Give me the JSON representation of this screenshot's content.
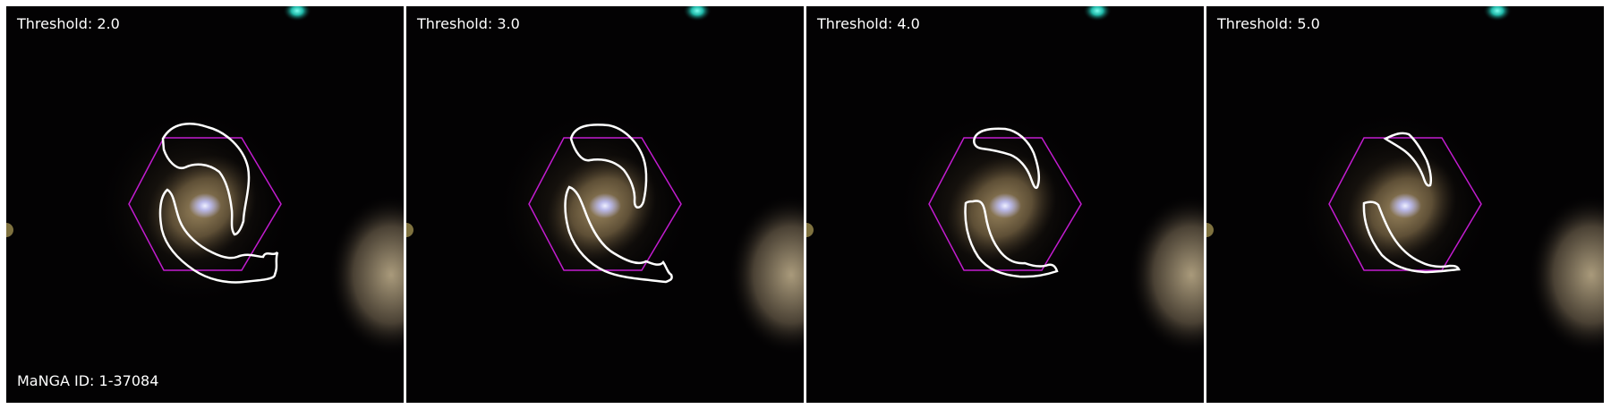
{
  "figure": {
    "panels": [
      {
        "label": "Threshold: 2.0"
      },
      {
        "label": "Threshold: 3.0"
      },
      {
        "label": "Threshold: 4.0"
      },
      {
        "label": "Threshold: 5.0"
      }
    ],
    "galaxy_id_label": "MaNGA ID: 1-37084"
  },
  "colors": {
    "background": "#030203",
    "contour": "#ffffff",
    "hexagon": "#c21ccf",
    "galaxy_core": "#cfd3ff",
    "galaxy_body": "#8b7651",
    "star_cyan": "#38f0e0"
  }
}
